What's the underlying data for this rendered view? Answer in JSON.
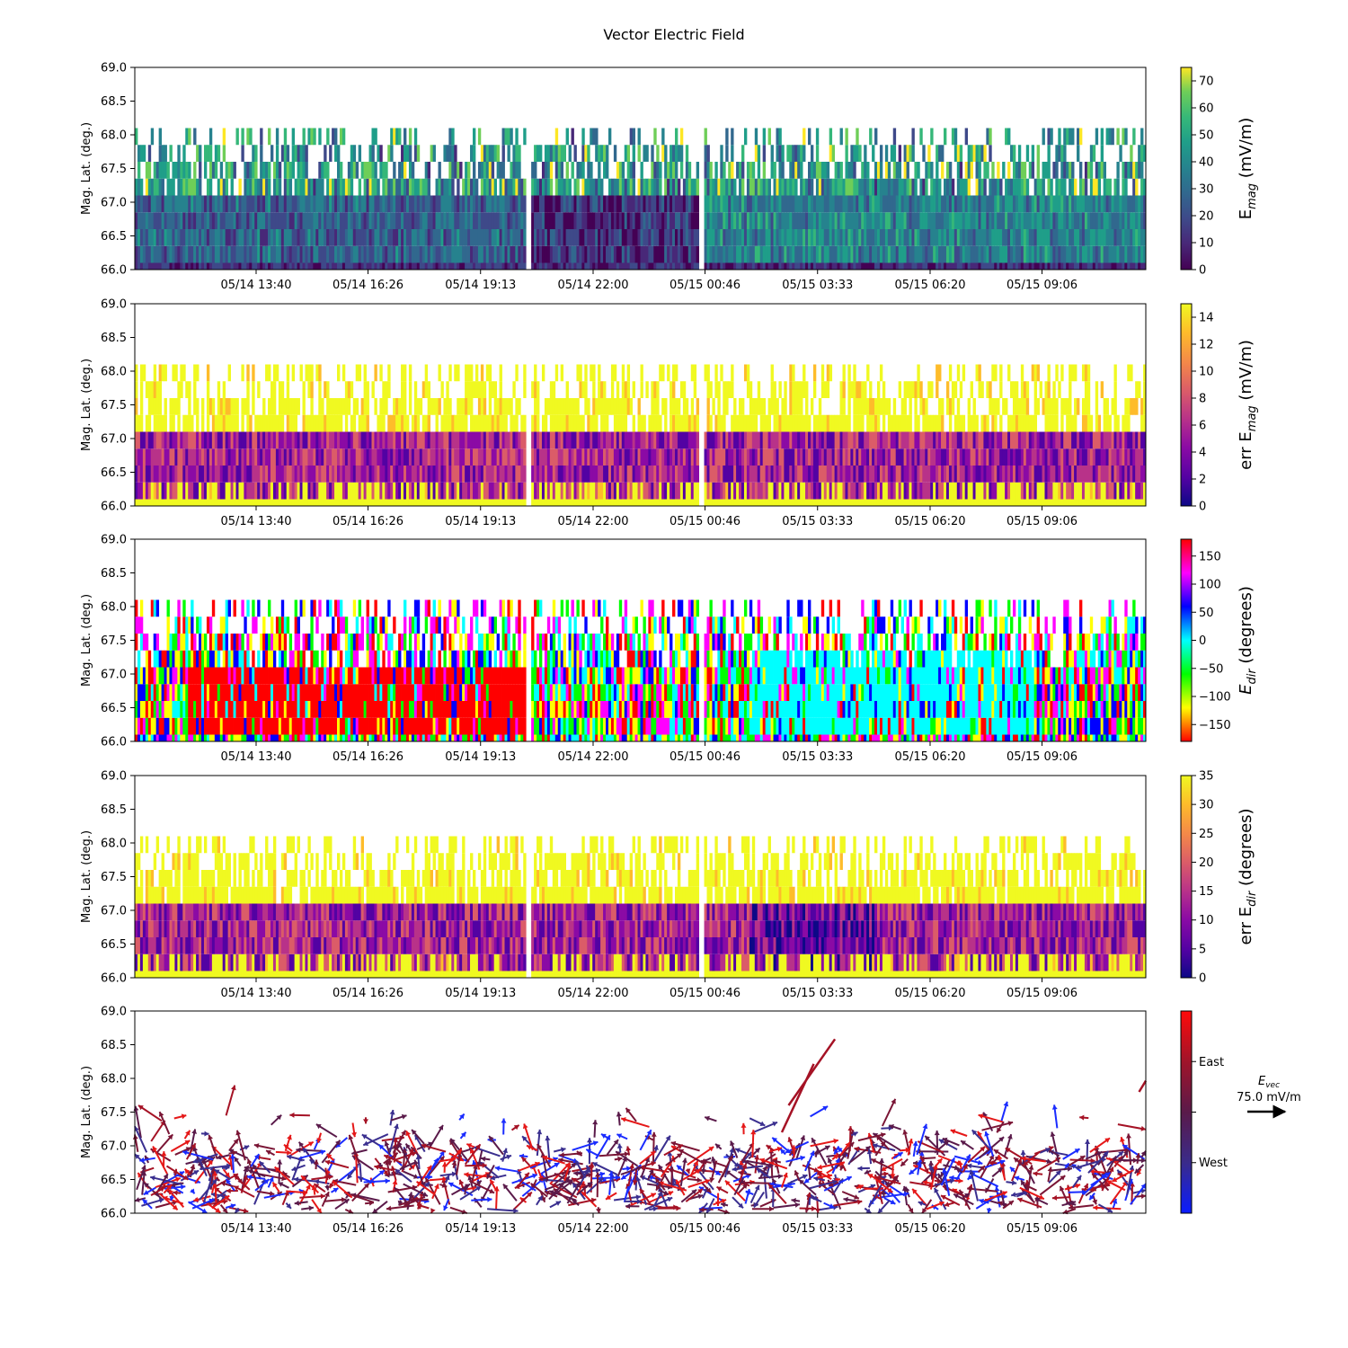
{
  "figure": {
    "title": "Vector Electric Field"
  },
  "chart_data": [
    {
      "type": "heatmap",
      "ylabel": "Mag. Lat. (deg.)",
      "ylim": [
        66.0,
        69.0
      ],
      "yticks": [
        "66.0",
        "66.5",
        "67.0",
        "67.5",
        "68.0",
        "68.5",
        "69.0"
      ],
      "xticks": [
        "05/14 13:40",
        "05/14 16:26",
        "05/14 19:13",
        "05/14 22:00",
        "05/15 00:46",
        "05/15 03:33",
        "05/15 06:20",
        "05/15 09:06"
      ],
      "colorbar": {
        "label_main": "E",
        "label_sub": "mag",
        "label_unit": " (mV/m)",
        "range": [
          0,
          75
        ],
        "ticks": [
          "0",
          "10",
          "20",
          "30",
          "40",
          "50",
          "60",
          "70"
        ],
        "colormap": "viridis"
      },
      "regions": [
        {
          "t_start": "05/14 10:40",
          "t_end": "05/14 20:30",
          "band": "66.0-66.9",
          "value_range": [
            5,
            45
          ]
        },
        {
          "t_start": "05/14 20:30",
          "t_end": "05/15 00:46",
          "band": "66.0-66.9",
          "value_range": [
            3,
            20
          ]
        },
        {
          "t_start": "05/15 00:46",
          "t_end": "05/15 11:40",
          "band": "66.0-67.1",
          "value_range": [
            20,
            60
          ]
        }
      ]
    },
    {
      "type": "heatmap",
      "ylabel": "Mag. Lat. (deg.)",
      "ylim": [
        66.0,
        69.0
      ],
      "yticks": [
        "66.0",
        "66.5",
        "67.0",
        "67.5",
        "68.0",
        "68.5",
        "69.0"
      ],
      "xticks": [
        "05/14 13:40",
        "05/14 16:26",
        "05/14 19:13",
        "05/14 22:00",
        "05/15 00:46",
        "05/15 03:33",
        "05/15 06:20",
        "05/15 09:06"
      ],
      "colorbar": {
        "label_main": "err E",
        "label_sub": "mag",
        "label_unit": " (mV/m)",
        "range": [
          0,
          15
        ],
        "ticks": [
          "0",
          "2",
          "4",
          "6",
          "8",
          "10",
          "12",
          "14"
        ],
        "colormap": "plasma"
      },
      "regions": [
        {
          "t_start": "05/14 10:40",
          "t_end": "05/15 11:40",
          "band": "66.1-66.9",
          "value_range": [
            3,
            10
          ]
        },
        {
          "t_start": "05/14 10:40",
          "t_end": "05/15 11:40",
          "band": "66.9-68.1",
          "value_range": [
            14,
            15
          ]
        }
      ]
    },
    {
      "type": "heatmap",
      "ylabel": "Mag. Lat. (deg.)",
      "ylim": [
        66.0,
        69.0
      ],
      "yticks": [
        "66.0",
        "66.5",
        "67.0",
        "67.5",
        "68.0",
        "68.5",
        "69.0"
      ],
      "xticks": [
        "05/14 13:40",
        "05/14 16:26",
        "05/14 19:13",
        "05/14 22:00",
        "05/15 00:46",
        "05/15 03:33",
        "05/15 06:20",
        "05/15 09:06"
      ],
      "colorbar": {
        "label_main": "E",
        "label_sub": "dir",
        "label_unit": " (degrees)",
        "range": [
          -180,
          180
        ],
        "ticks": [
          "−150",
          "−100",
          "−50",
          "0",
          "50",
          "100",
          "150"
        ],
        "tick_values": [
          -150,
          -100,
          -50,
          0,
          50,
          100,
          150
        ],
        "colormap": "hsv"
      },
      "regions": [
        {
          "t_start": "05/14 12:00",
          "t_end": "05/14 20:30",
          "band": "66.1-66.9",
          "value_range": [
            -180,
            -160
          ]
        },
        {
          "t_start": "05/15 01:50",
          "t_end": "05/15 09:00",
          "band": "66.1-67.1",
          "value_range": [
            0,
            30
          ]
        }
      ]
    },
    {
      "type": "heatmap",
      "ylabel": "Mag. Lat. (deg.)",
      "ylim": [
        66.0,
        69.0
      ],
      "yticks": [
        "66.0",
        "66.5",
        "67.0",
        "67.5",
        "68.0",
        "68.5",
        "69.0"
      ],
      "xticks": [
        "05/14 13:40",
        "05/14 16:26",
        "05/14 19:13",
        "05/14 22:00",
        "05/15 00:46",
        "05/15 03:33",
        "05/15 06:20",
        "05/15 09:06"
      ],
      "colorbar": {
        "label_main": "err E",
        "label_sub": "dir",
        "label_unit": " (degrees)",
        "range": [
          0,
          35
        ],
        "ticks": [
          "0",
          "5",
          "10",
          "15",
          "20",
          "25",
          "30",
          "35"
        ],
        "colormap": "plasma"
      },
      "regions": [
        {
          "t_start": "05/14 10:40",
          "t_end": "05/15 11:40",
          "band": "66.1-67.1",
          "value_range": [
            3,
            20
          ]
        },
        {
          "t_start": "05/14 10:40",
          "t_end": "05/15 11:40",
          "band": "67.1-68.1",
          "value_range": [
            30,
            35
          ]
        }
      ]
    },
    {
      "type": "scatter",
      "ylabel": "Mag. Lat. (deg.)",
      "ylim": [
        66.0,
        69.0
      ],
      "yticks": [
        "66.0",
        "66.5",
        "67.0",
        "67.5",
        "68.0",
        "68.5",
        "69.0"
      ],
      "xticks": [
        "05/14 13:40",
        "05/14 16:26",
        "05/14 19:13",
        "05/14 22:00",
        "05/15 00:46",
        "05/15 03:33",
        "05/15 06:20",
        "05/15 09:06"
      ],
      "colorbar": {
        "ticks": [
          "West",
          "East"
        ],
        "colormap": "blue-darkred-red"
      },
      "quiver_key": {
        "label_main": "E",
        "label_sub": "vec",
        "label_value": "75.0 mV/m"
      },
      "highlighted_vectors": [
        {
          "t": "05/15 02:50",
          "lat": 67.6,
          "mag": 75,
          "dir_deg": 55
        },
        {
          "t": "05/15 02:40",
          "lat": 67.2,
          "mag": 70,
          "dir_deg": 65
        },
        {
          "t": "05/15 11:30",
          "lat": 67.8,
          "mag": 30,
          "dir_deg": 20
        }
      ]
    }
  ]
}
